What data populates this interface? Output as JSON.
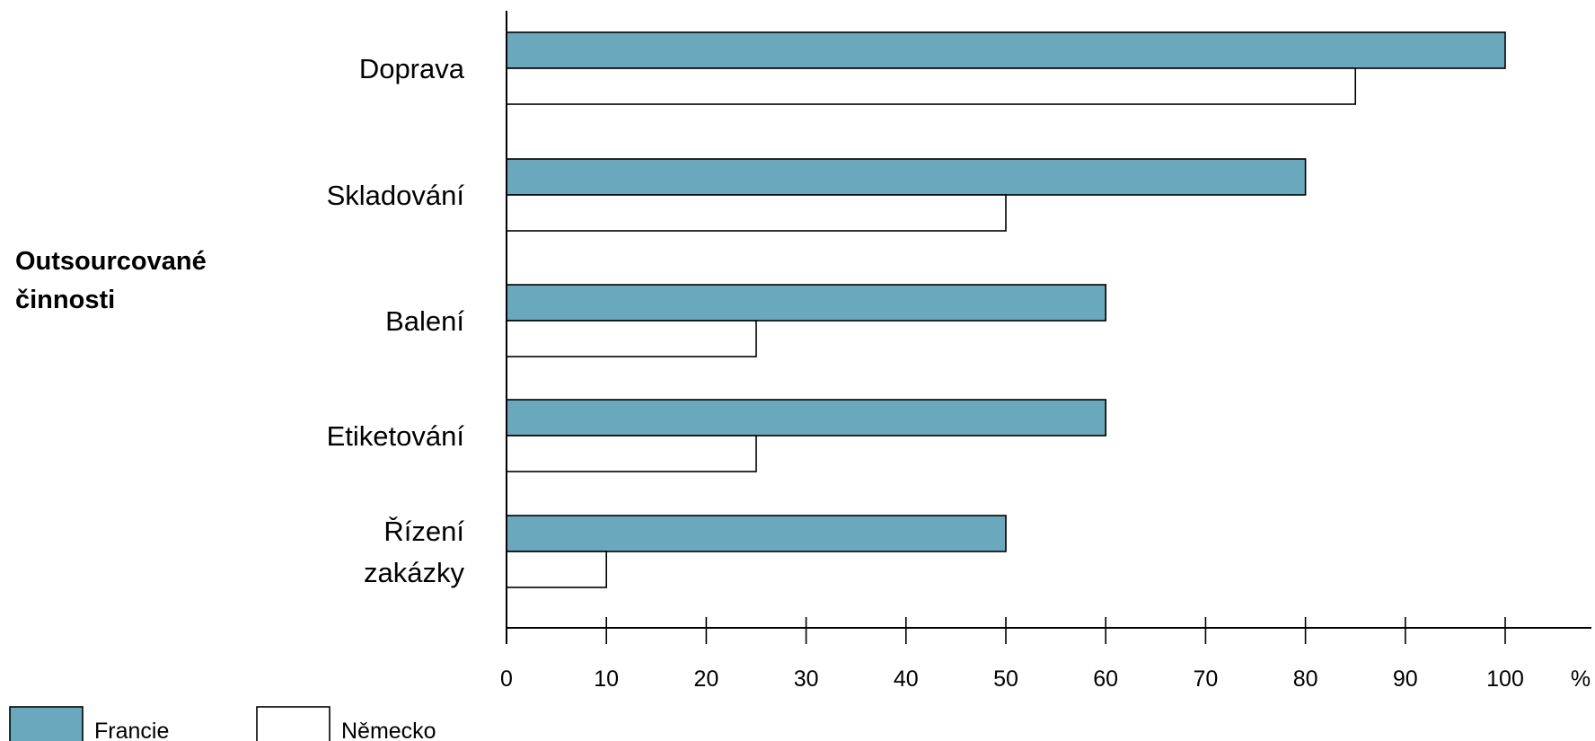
{
  "chart_data": {
    "type": "bar",
    "orientation": "horizontal",
    "title": "",
    "ylabel": [
      "Outsourcované",
      "činnosti"
    ],
    "xlabel": "",
    "x_unit": "%",
    "categories": [
      [
        "Doprava"
      ],
      [
        "Skladování"
      ],
      [
        "Balení"
      ],
      [
        "Etiketování"
      ],
      [
        "Řízení",
        "zakázky"
      ]
    ],
    "series": [
      {
        "name": "Francie",
        "color": "#6aa8bd",
        "values": [
          100,
          80,
          60,
          60,
          50
        ]
      },
      {
        "name": "Německo",
        "color": "#ffffff",
        "values": [
          85,
          50,
          25,
          25,
          10
        ]
      }
    ],
    "xlim": [
      0,
      100
    ],
    "xticks": [
      0,
      10,
      20,
      30,
      40,
      50,
      60,
      70,
      80,
      90,
      100
    ],
    "grid": false,
    "legend_position": "bottom-left"
  }
}
